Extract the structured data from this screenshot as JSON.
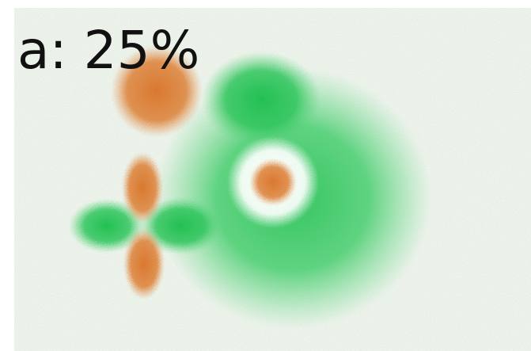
{
  "panel": {
    "label": "a: 25%"
  }
}
